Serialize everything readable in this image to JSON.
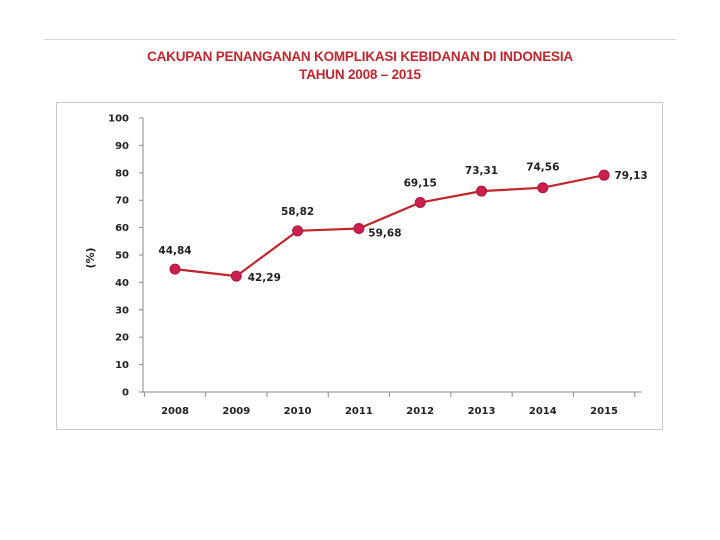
{
  "chart_data": {
    "type": "line",
    "title": "CAKUPAN PENANGANAN KOMPLIKASI KEBIDANAN DI INDONESIA",
    "subtitle": "TAHUN 2008 – 2015",
    "ylabel": "(%)",
    "xlabel": "",
    "categories": [
      "2008",
      "2009",
      "2010",
      "2011",
      "2012",
      "2013",
      "2014",
      "2015"
    ],
    "series": [
      {
        "values": [
          44.84,
          42.29,
          58.82,
          59.68,
          69.15,
          73.31,
          74.56,
          79.13
        ],
        "data_labels": [
          "44,84",
          "42,29",
          "58,82",
          "59,68",
          "69,15",
          "73,31",
          "74,56",
          "79,13"
        ],
        "color": "#c0262d",
        "marker_color": "#cc1f4f"
      }
    ],
    "ylim": [
      0,
      100
    ],
    "yticks": [
      0,
      10,
      20,
      30,
      40,
      50,
      60,
      70,
      80,
      90,
      100
    ],
    "grid": false,
    "legend": "none"
  }
}
